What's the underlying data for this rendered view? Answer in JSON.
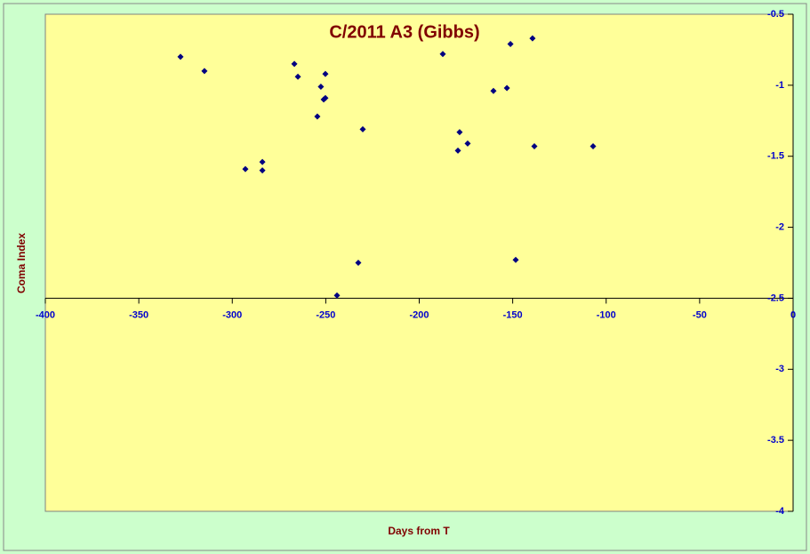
{
  "chart_data": {
    "type": "scatter",
    "title": "C/2011 A3 (Gibbs)",
    "x_label": "Days from T",
    "y_label": "Coma Index",
    "x": [
      -327.7,
      -314.9,
      -293.0,
      -283.9,
      -283.9,
      -266.8,
      -264.9,
      -252.6,
      -254.5,
      -250.2,
      -251.1,
      -250.2,
      -230.2,
      -232.6,
      -244.0,
      -187.4,
      -178.4,
      -179.3,
      -174.1,
      -160.3,
      -153.1,
      -151.2,
      -139.4,
      -148.4,
      -138.4,
      -107.0
    ],
    "values": [
      -0.8,
      -0.9,
      -1.59,
      -1.54,
      -1.6,
      -0.85,
      -0.94,
      -1.01,
      -1.22,
      -0.92,
      -1.1,
      -1.09,
      -1.31,
      -2.25,
      -2.48,
      -0.78,
      -1.33,
      -1.46,
      -1.41,
      -1.04,
      -1.02,
      -0.71,
      -0.67,
      -2.23,
      -1.43,
      -1.43
    ],
    "color": "#000080",
    "xlim": [
      -400,
      0
    ],
    "xticks": [
      -400,
      -350,
      -300,
      -250,
      -200,
      -150,
      -100,
      -50,
      0
    ],
    "ylim": [
      -4,
      -0.5
    ],
    "yticks": [
      -0.5,
      -1,
      -1.5,
      -2,
      -2.5,
      -3,
      -3.5,
      -4
    ],
    "x_axis_at": -2.5
  }
}
